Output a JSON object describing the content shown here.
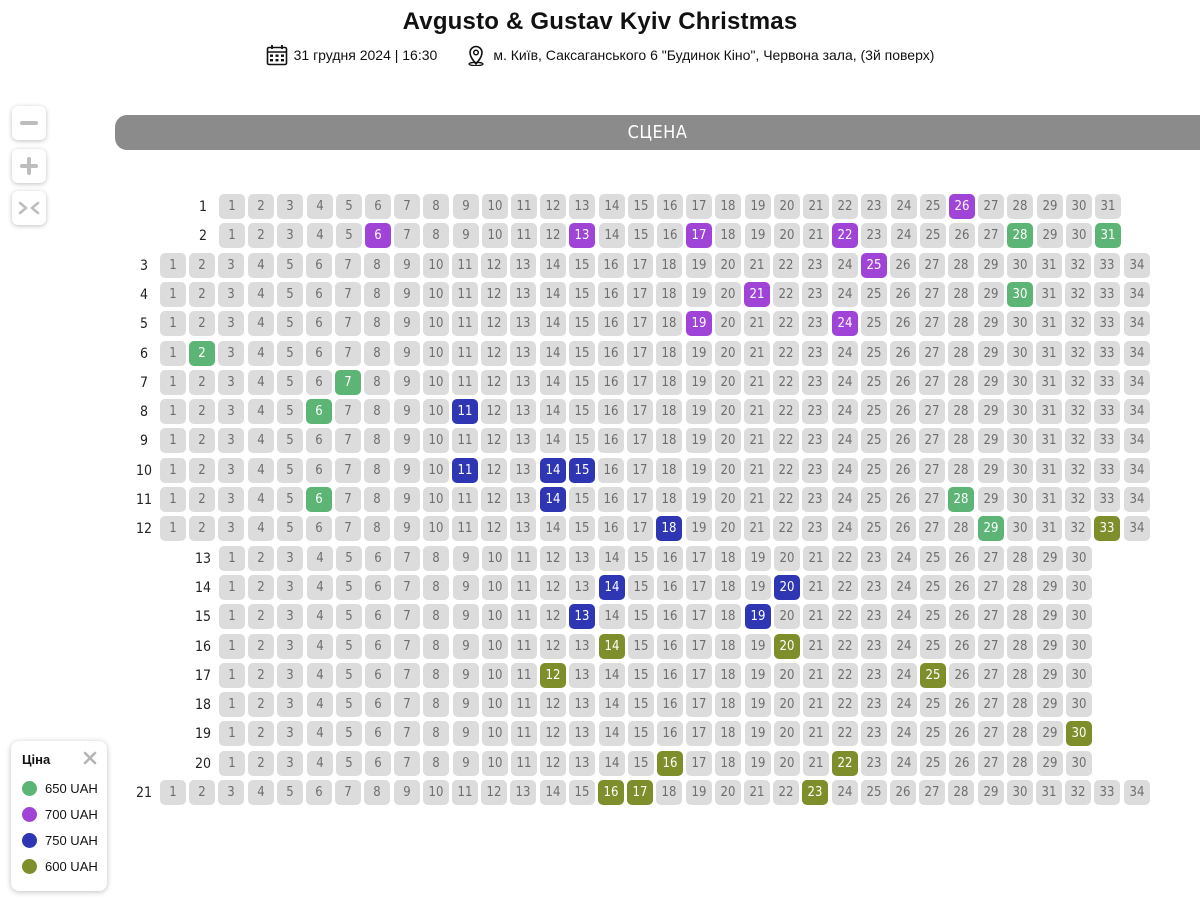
{
  "event": {
    "title": "Avgusto & Gustav Kyiv Christmas",
    "datetime": "31 грудня 2024 | 16:30",
    "venue": "м. Київ, Саксаганського 6 \"Будинок Кіно\", Червона зала, (3й поверх)",
    "calendar_icon": "calendar-icon",
    "location_icon": "map-pin-icon"
  },
  "zoom": {
    "out_icon": "minus-icon",
    "in_icon": "plus-icon",
    "reset_icon": "collapse-arrows-icon"
  },
  "stage_label": "СЦЕНА",
  "price_colors": {
    "650": "#5cb574",
    "700": "#a044d8",
    "750": "#2f36b4",
    "600": "#7e8e2a"
  },
  "legend": {
    "title": "Ціна",
    "close_icon": "close-icon",
    "items": [
      {
        "label": "650 UAH",
        "price": "650",
        "color": "#5cb574"
      },
      {
        "label": "700 UAH",
        "price": "700",
        "color": "#a044d8"
      },
      {
        "label": "750 UAH",
        "price": "750",
        "color": "#2f36b4"
      },
      {
        "label": "600 UAH",
        "price": "600",
        "color": "#7e8e2a"
      }
    ]
  },
  "rows": [
    {
      "row": 1,
      "seats": 31,
      "available": {
        "26": "700"
      }
    },
    {
      "row": 2,
      "seats": 31,
      "available": {
        "6": "700",
        "13": "700",
        "17": "700",
        "22": "700",
        "28": "650",
        "31": "650"
      }
    },
    {
      "row": 3,
      "seats": 34,
      "available": {
        "25": "700"
      }
    },
    {
      "row": 4,
      "seats": 34,
      "available": {
        "21": "700",
        "30": "650"
      }
    },
    {
      "row": 5,
      "seats": 34,
      "available": {
        "19": "700",
        "24": "700"
      }
    },
    {
      "row": 6,
      "seats": 34,
      "available": {
        "2": "650"
      }
    },
    {
      "row": 7,
      "seats": 34,
      "available": {
        "7": "650"
      }
    },
    {
      "row": 8,
      "seats": 34,
      "available": {
        "6": "650",
        "11": "750"
      }
    },
    {
      "row": 9,
      "seats": 34,
      "available": {}
    },
    {
      "row": 10,
      "seats": 34,
      "available": {
        "11": "750",
        "14": "750",
        "15": "750"
      }
    },
    {
      "row": 11,
      "seats": 34,
      "available": {
        "6": "650",
        "14": "750",
        "28": "650"
      }
    },
    {
      "row": 12,
      "seats": 34,
      "available": {
        "18": "750",
        "29": "650",
        "33": "600"
      }
    },
    {
      "row": 13,
      "seats": 30,
      "available": {}
    },
    {
      "row": 14,
      "seats": 30,
      "available": {
        "14": "750",
        "20": "750"
      }
    },
    {
      "row": 15,
      "seats": 30,
      "available": {
        "13": "750",
        "19": "750"
      }
    },
    {
      "row": 16,
      "seats": 30,
      "available": {
        "14": "600",
        "20": "600"
      }
    },
    {
      "row": 17,
      "seats": 30,
      "available": {
        "12": "600",
        "25": "600"
      }
    },
    {
      "row": 18,
      "seats": 30,
      "available": {}
    },
    {
      "row": 19,
      "seats": 30,
      "available": {
        "30": "600"
      }
    },
    {
      "row": 20,
      "seats": 30,
      "available": {
        "16": "600",
        "22": "600"
      }
    },
    {
      "row": 21,
      "seats": 34,
      "available": {
        "16": "600",
        "17": "600",
        "23": "600"
      }
    }
  ]
}
